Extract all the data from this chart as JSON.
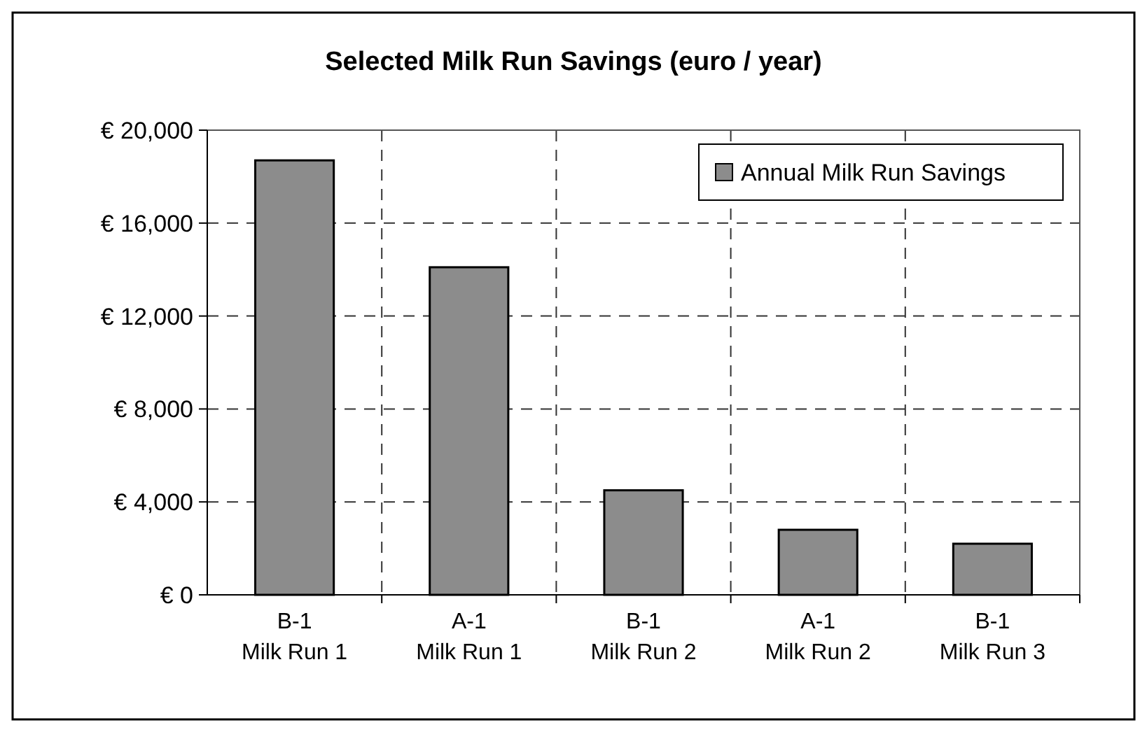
{
  "chart_data": {
    "type": "bar",
    "title": "Selected Milk Run Savings (euro / year)",
    "categories": [
      "B-1\nMilk Run 1",
      "A-1\nMilk Run 1",
      "B-1\nMilk Run 2",
      "A-1\nMilk Run 2",
      "B-1\nMilk Run 3"
    ],
    "series": [
      {
        "name": "Annual Milk Run Savings",
        "color": "#8c8c8c",
        "values": [
          18700,
          14100,
          4500,
          2800,
          2200
        ]
      }
    ],
    "ylim": [
      0,
      20000
    ],
    "yticks": [
      {
        "value": 0,
        "label": "€ 0"
      },
      {
        "value": 4000,
        "label": "€ 4,000"
      },
      {
        "value": 8000,
        "label": "€ 8,000"
      },
      {
        "value": 12000,
        "label": "€ 12,000"
      },
      {
        "value": 16000,
        "label": "€ 16,000"
      },
      {
        "value": 20000,
        "label": "€ 20,000"
      }
    ],
    "grid": true,
    "legend": "top right"
  }
}
